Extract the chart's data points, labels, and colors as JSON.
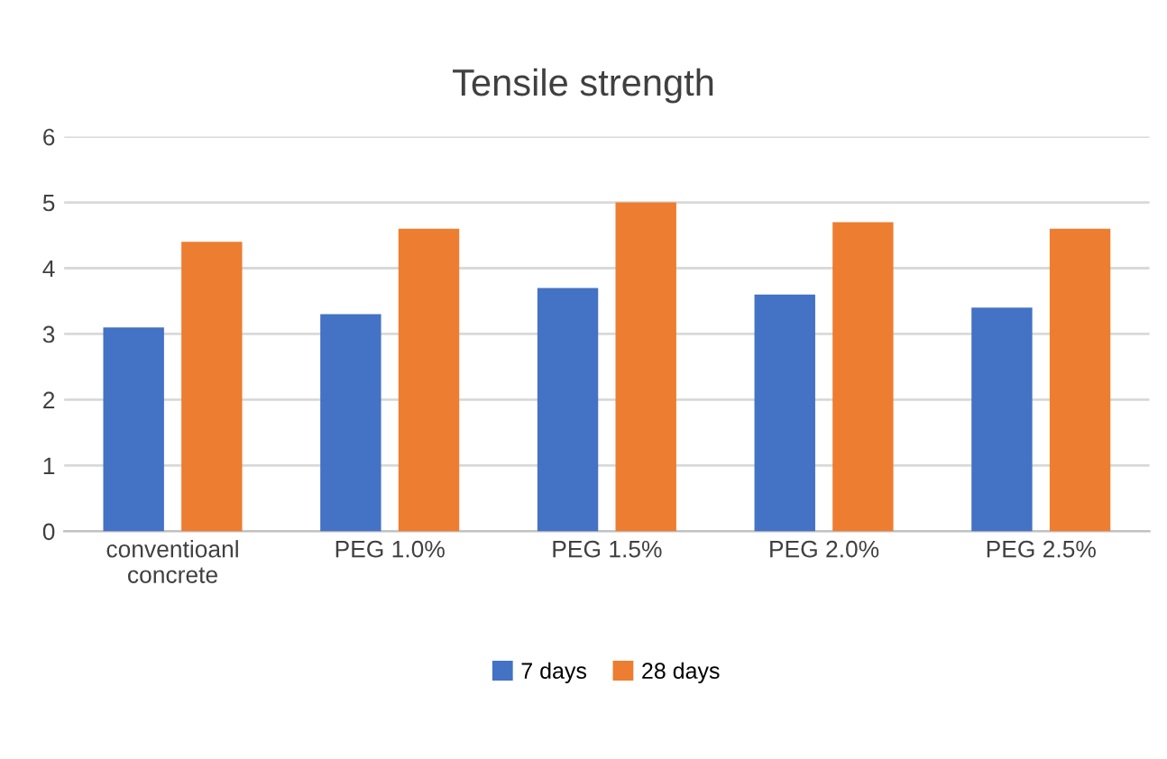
{
  "chart_data": {
    "type": "bar",
    "title": "Tensile strength",
    "categories": [
      "conventioanl concrete",
      "PEG 1.0%",
      "PEG 1.5%",
      "PEG 2.0%",
      "PEG 2.5%"
    ],
    "series": [
      {
        "name": "7 days",
        "color": "#4472c4",
        "values": [
          3.1,
          3.3,
          3.7,
          3.6,
          3.4
        ]
      },
      {
        "name": "28 days",
        "color": "#ed7d31",
        "values": [
          4.4,
          4.6,
          5.0,
          4.7,
          4.6
        ]
      }
    ],
    "ylim": [
      0,
      6
    ],
    "yticks": [
      0,
      1,
      2,
      3,
      4,
      5,
      6
    ],
    "grid": "y",
    "legend": "bottom"
  }
}
